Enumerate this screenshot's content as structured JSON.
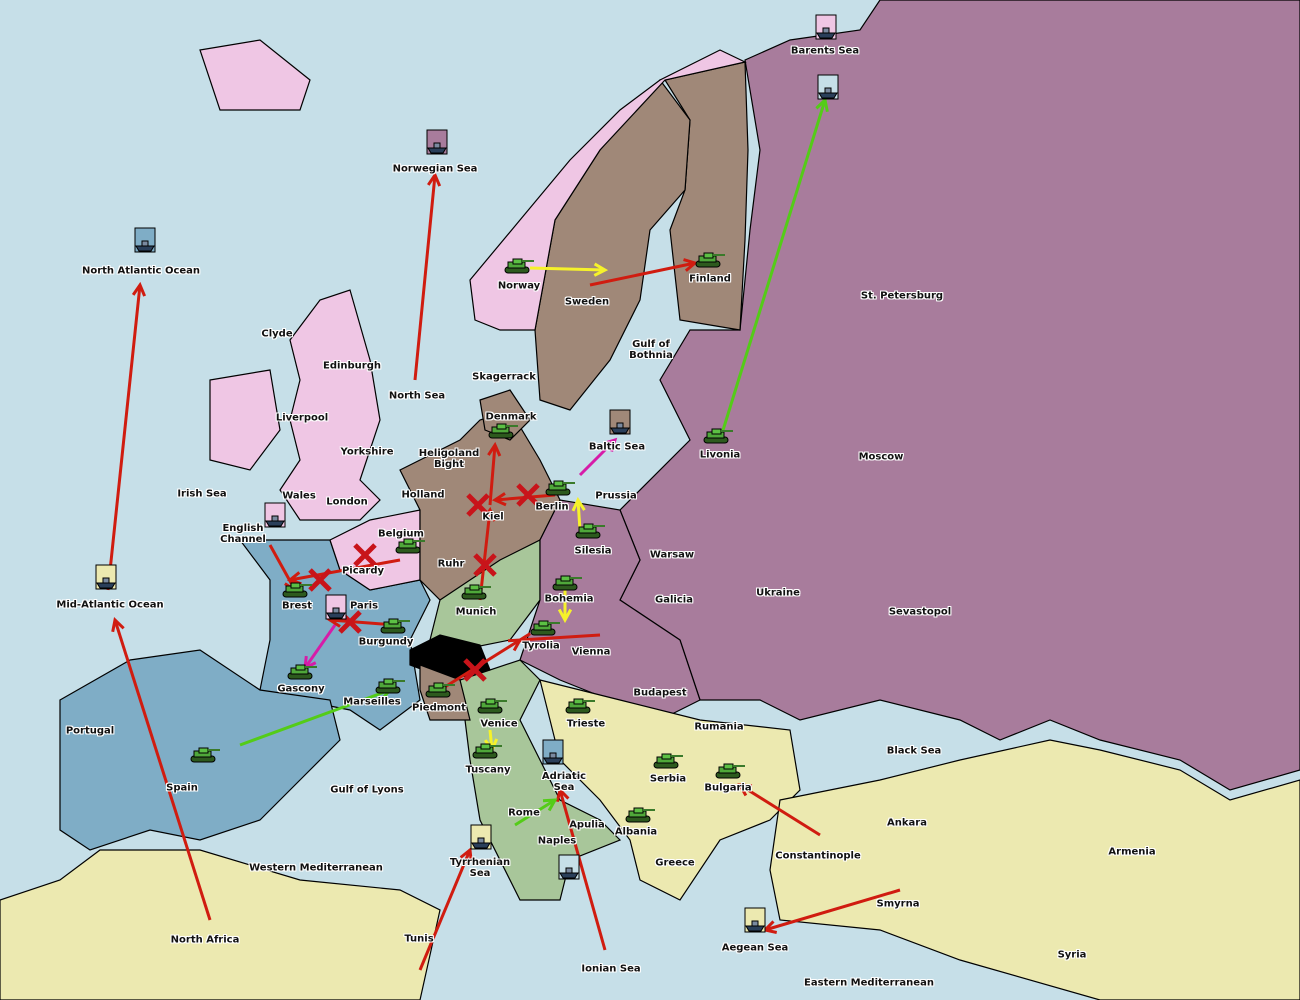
{
  "colors": {
    "sea": "#c6dfe8",
    "england": "#efc6e4",
    "russia": "#a87c9c",
    "germany": "#a08878",
    "france": "#7fadc6",
    "italy": "#a8c69a",
    "neutral": "#ece9b0",
    "austria": "#a87c9c",
    "blocked": "#000000",
    "move_order": "#d01c10",
    "support_order": "#f6f22a",
    "convoy_order": "#54cc18",
    "retreat_order": "#d61ca8"
  },
  "territories": [
    "Barents Sea",
    "Norwegian Sea",
    "North Atlantic Ocean",
    "Norway",
    "Sweden",
    "Finland",
    "St. Petersburg",
    "Clyde",
    "Edinburgh",
    "Gulf of\nBothnia",
    "Skagerrack",
    "North Sea",
    "Liverpool",
    "Denmark",
    "Yorkshire",
    "Baltic Sea",
    "Livonia",
    "Moscow",
    "Heligoland\nBight",
    "Irish Sea",
    "Wales",
    "London",
    "Holland",
    "Prussia",
    "Kiel",
    "Berlin",
    "English\nChannel",
    "Belgium",
    "Warsaw",
    "Silesia",
    "Ruhr",
    "Picardy",
    "Bohemia",
    "Galicia",
    "Ukraine",
    "Mid-Atlantic Ocean",
    "Brest",
    "Paris",
    "Munich",
    "Sevastopol",
    "Burgundy",
    "Tyrolia",
    "Vienna",
    "Gascony",
    "Budapest",
    "Marseilles",
    "Piedmont",
    "Venice",
    "Trieste",
    "Rumania",
    "Portugal",
    "Black Sea",
    "Tuscany",
    "Serbia",
    "Adriatic\nSea",
    "Bulgaria",
    "Spain",
    "Gulf of Lyons",
    "Rome",
    "Apulia",
    "Ankara",
    "Albania",
    "Naples",
    "Constantinople",
    "Armenia",
    "Greece",
    "Western Mediterranean",
    "Tyrrhenian\nSea",
    "Smyrna",
    "North Africa",
    "Tunis",
    "Aegean Sea",
    "Syria",
    "Ionian Sea",
    "Eastern Mediterranean"
  ],
  "units": [
    {
      "type": "fleet",
      "territory": "Barents Sea"
    },
    {
      "type": "fleet",
      "territory": "St. Petersburg"
    },
    {
      "type": "fleet",
      "territory": "Norwegian Sea"
    },
    {
      "type": "fleet",
      "territory": "North Atlantic Ocean"
    },
    {
      "type": "army",
      "territory": "Norway"
    },
    {
      "type": "army",
      "territory": "Finland"
    },
    {
      "type": "army",
      "territory": "Livonia"
    },
    {
      "type": "army",
      "territory": "Denmark"
    },
    {
      "type": "fleet",
      "territory": "Baltic Sea"
    },
    {
      "type": "army",
      "territory": "Berlin"
    },
    {
      "type": "army",
      "territory": "Silesia"
    },
    {
      "type": "army",
      "territory": "Belgium"
    },
    {
      "type": "fleet",
      "territory": "English Channel"
    },
    {
      "type": "fleet",
      "territory": "Mid-Atlantic Ocean"
    },
    {
      "type": "army",
      "territory": "Brest"
    },
    {
      "type": "fleet",
      "territory": "Paris"
    },
    {
      "type": "army",
      "territory": "Burgundy"
    },
    {
      "type": "army",
      "territory": "Munich"
    },
    {
      "type": "army",
      "territory": "Bohemia"
    },
    {
      "type": "army",
      "territory": "Tyrolia"
    },
    {
      "type": "army",
      "territory": "Gascony"
    },
    {
      "type": "army",
      "territory": "Marseilles"
    },
    {
      "type": "army",
      "territory": "Piedmont"
    },
    {
      "type": "army",
      "territory": "Venice"
    },
    {
      "type": "army",
      "territory": "Trieste"
    },
    {
      "type": "army",
      "territory": "Tuscany"
    },
    {
      "type": "fleet",
      "territory": "Adriatic Sea"
    },
    {
      "type": "army",
      "territory": "Serbia"
    },
    {
      "type": "army",
      "territory": "Bulgaria"
    },
    {
      "type": "army",
      "territory": "Albania"
    },
    {
      "type": "army",
      "territory": "Spain"
    },
    {
      "type": "fleet",
      "territory": "Tyrrhenian Sea"
    },
    {
      "type": "fleet",
      "territory": "Naples"
    },
    {
      "type": "fleet",
      "territory": "Aegean Sea"
    }
  ]
}
